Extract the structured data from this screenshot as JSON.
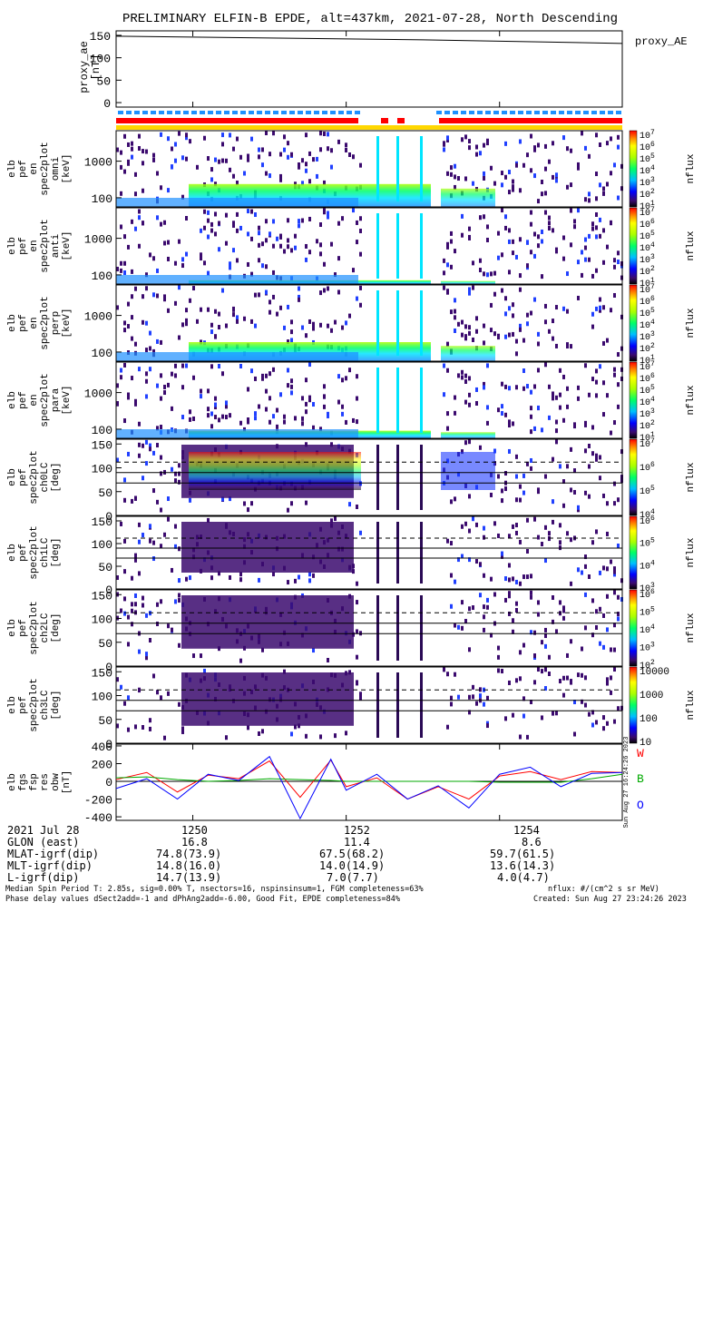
{
  "title": "PRELIMINARY ELFIN-B EPDE, alt=437km, 2021-07-28, North Descending",
  "chart_data": [
    {
      "type": "line",
      "panel": "proxy_ae",
      "ylabel": [
        "proxy_ae",
        "[nT]"
      ],
      "legend": "proxy_AE",
      "ylim": [
        -10,
        160
      ],
      "yticks": [
        0,
        50,
        100,
        150
      ],
      "x": [
        1249.0,
        1250.0,
        1251.0,
        1252.0,
        1253.0,
        1254.0,
        1255.0,
        1255.6
      ],
      "values": [
        148,
        146,
        144,
        142,
        140,
        137,
        134,
        132
      ]
    },
    {
      "type": "heatmap",
      "panel": "pef en spec2plot omni",
      "ylabel": [
        "elb",
        "pef",
        "en",
        "spec2plot",
        "omni",
        "[keV]"
      ],
      "yticks": [
        "100",
        "1000"
      ],
      "colorbar": [
        "10^7",
        "10^6",
        "10^5",
        "10^4",
        "10^3",
        "10^2",
        "10^1"
      ],
      "colorbar_label": "nflux"
    },
    {
      "type": "heatmap",
      "panel": "pef en spec2plot anti",
      "ylabel": [
        "elb",
        "pef",
        "en",
        "spec2plot",
        "anti",
        "[keV]"
      ],
      "yticks": [
        "100",
        "1000"
      ],
      "colorbar": [
        "10^7",
        "10^6",
        "10^5",
        "10^4",
        "10^3",
        "10^2",
        "10^1"
      ],
      "colorbar_label": "nflux"
    },
    {
      "type": "heatmap",
      "panel": "pef en spec2plot perp",
      "ylabel": [
        "elb",
        "pef",
        "en",
        "spec2plot",
        "perp",
        "[keV]"
      ],
      "yticks": [
        "100",
        "1000"
      ],
      "colorbar": [
        "10^7",
        "10^6",
        "10^5",
        "10^4",
        "10^3",
        "10^2",
        "10^1"
      ],
      "colorbar_label": "nflux"
    },
    {
      "type": "heatmap",
      "panel": "pef en spec2plot para",
      "ylabel": [
        "elb",
        "pef",
        "en",
        "spec2plot",
        "para",
        "[keV]"
      ],
      "yticks": [
        "100",
        "1000"
      ],
      "colorbar": [
        "10^7",
        "10^6",
        "10^5",
        "10^4",
        "10^3",
        "10^2",
        "10^1"
      ],
      "colorbar_label": "nflux"
    },
    {
      "type": "heatmap",
      "panel": "pef spec2plot ch0LC",
      "ylabel": [
        "elb",
        "pef",
        "spec2plot",
        "ch0LC",
        "[deg]"
      ],
      "yticks": [
        "0",
        "50",
        "100",
        "150"
      ],
      "colorbar": [
        "10^7",
        "10^6",
        "10^5",
        "10^4"
      ],
      "colorbar_label": "nflux"
    },
    {
      "type": "heatmap",
      "panel": "pef spec2plot ch1LC",
      "ylabel": [
        "elb",
        "pef",
        "spec2plot",
        "ch1LC",
        "[deg]"
      ],
      "yticks": [
        "0",
        "50",
        "100",
        "150"
      ],
      "colorbar": [
        "10^6",
        "10^5",
        "10^4",
        "10^3"
      ],
      "colorbar_label": "nflux"
    },
    {
      "type": "heatmap",
      "panel": "pef spec2plot ch2LC",
      "ylabel": [
        "elb",
        "pef",
        "spec2plot",
        "ch2LC",
        "[deg]"
      ],
      "yticks": [
        "0",
        "50",
        "100",
        "150"
      ],
      "colorbar": [
        "10^6",
        "10^5",
        "10^4",
        "10^3",
        "10^2"
      ],
      "colorbar_label": "nflux"
    },
    {
      "type": "heatmap",
      "panel": "pef spec2plot ch3LC",
      "ylabel": [
        "elb",
        "pef",
        "spec2plot",
        "ch3LC",
        "[deg]"
      ],
      "yticks": [
        "0",
        "50",
        "100",
        "150"
      ],
      "colorbar": [
        "10000",
        "1000",
        "100",
        "10"
      ],
      "colorbar_label": "nflux"
    },
    {
      "type": "line",
      "panel": "fgs fsp res obw",
      "ylabel": [
        "elb",
        "fgs",
        "fsp",
        "res",
        "obw",
        "[nT]"
      ],
      "ylim": [
        -440,
        420
      ],
      "yticks": [
        -400,
        -200,
        0,
        200,
        400
      ],
      "legend": [
        "W",
        "B",
        "O"
      ],
      "x": [
        1249.0,
        1249.4,
        1249.8,
        1250.2,
        1250.6,
        1251.0,
        1251.4,
        1251.8,
        1252.0,
        1252.4,
        1252.8,
        1253.2,
        1253.6,
        1254.0,
        1254.4,
        1254.8,
        1255.2,
        1255.6
      ],
      "series": [
        {
          "name": "W",
          "color": "#ff0000",
          "values": [
            20,
            100,
            -120,
            70,
            30,
            230,
            -180,
            240,
            -60,
            40,
            -200,
            -60,
            -200,
            60,
            110,
            20,
            110,
            100
          ]
        },
        {
          "name": "B",
          "color": "#00aa00",
          "values": [
            40,
            50,
            20,
            0,
            10,
            30,
            20,
            10,
            0,
            0,
            0,
            0,
            0,
            -10,
            -10,
            -10,
            30,
            80
          ]
        },
        {
          "name": "O",
          "color": "#0000ff",
          "values": [
            -80,
            30,
            -200,
            80,
            10,
            280,
            -420,
            250,
            -100,
            80,
            -200,
            -50,
            -300,
            80,
            160,
            -60,
            90,
            100
          ]
        }
      ]
    }
  ],
  "xaxis": {
    "range": [
      1249.0,
      1255.6
    ],
    "ticks": [
      "1250",
      "1252",
      "1254"
    ],
    "tick_values": [
      1250,
      1252,
      1254
    ]
  },
  "footer_table": {
    "rows": [
      {
        "label": "2021 Jul 28",
        "values": [
          "1250",
          "1252",
          "1254"
        ]
      },
      {
        "label": "GLON (east)",
        "values": [
          "16.8",
          "11.4",
          "8.6"
        ]
      },
      {
        "label": "MLAT-igrf(dip)",
        "values": [
          "74.8(73.9)",
          "67.5(68.2)",
          "59.7(61.5)"
        ]
      },
      {
        "label": "MLT-igrf(dip)",
        "values": [
          "14.8(16.0)",
          "14.0(14.9)",
          "13.6(14.3)"
        ]
      },
      {
        "label": "L-igrf(dip)",
        "values": [
          "14.7(13.9)",
          "7.0(7.7)",
          "4.0(4.7)"
        ]
      }
    ]
  },
  "footnotes": {
    "left1": "Median Spin Period T: 2.85s, sig=0.00% T, nsectors=16, nspinsinsum=1, FGM completeness=63%",
    "left2": "Phase delay values dSect2add=-1 and dPhAng2add=-6.00, Good Fit, EPDE completeness=84%",
    "right1": "nflux: #/(cm^2 s sr MeV)",
    "right2": "Created: Sun Aug 27 23:24:26 2023",
    "vertical": "Sun Aug 27 16:24:26 2023"
  },
  "colors": {
    "status_blue": "#1e90ff",
    "status_red": "#ff0000",
    "status_yellow": "#ffd700"
  }
}
